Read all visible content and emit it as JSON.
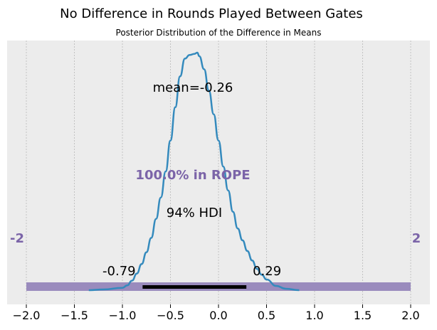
{
  "title": "No Difference in Rounds Played Between Gates",
  "subtitle": "Posterior Distribution of the Difference in Means",
  "colors": {
    "background": "#ffffff",
    "plot_background": "#ececec",
    "grid": "#b8b8b8",
    "density_line": "#348abd",
    "rope_band": "#9a8bbd",
    "rope_text": "#7b64a8",
    "hdi_bar": "#000000"
  },
  "chart_data": {
    "type": "line",
    "title": "No Difference in Rounds Played Between Gates",
    "subtitle": "Posterior Distribution of the Difference in Means",
    "xlabel": "",
    "ylabel": "",
    "xlim": [
      -2.2,
      2.2
    ],
    "x_ticks": [
      -2.0,
      -1.5,
      -1.0,
      -0.5,
      0.0,
      0.5,
      1.0,
      1.5,
      2.0
    ],
    "x_tick_labels": [
      "−2.0",
      "−1.5",
      "−1.0",
      "−0.5",
      "0.0",
      "0.5",
      "1.0",
      "1.5",
      "2.0"
    ],
    "grid": "vertical",
    "series": [
      {
        "x": [
          -1.35,
          -1.2,
          -1.0,
          -0.95,
          -0.9,
          -0.85,
          -0.8,
          -0.75,
          -0.7,
          -0.65,
          -0.6,
          -0.55,
          -0.5,
          -0.45,
          -0.4,
          -0.35,
          -0.3,
          -0.25,
          -0.22,
          -0.2,
          -0.15,
          -0.1,
          -0.05,
          0.0,
          0.05,
          0.1,
          0.15,
          0.2,
          0.25,
          0.3,
          0.35,
          0.4,
          0.45,
          0.5,
          0.6,
          0.7,
          0.84
        ],
        "y": [
          0.0,
          0.003,
          0.01,
          0.02,
          0.04,
          0.07,
          0.11,
          0.16,
          0.22,
          0.3,
          0.39,
          0.5,
          0.63,
          0.77,
          0.9,
          0.975,
          0.99,
          0.995,
          1.0,
          0.985,
          0.93,
          0.84,
          0.74,
          0.63,
          0.52,
          0.42,
          0.33,
          0.26,
          0.21,
          0.165,
          0.125,
          0.09,
          0.065,
          0.045,
          0.018,
          0.006,
          0.0
        ]
      }
    ],
    "rope": {
      "low": -2,
      "high": 2,
      "low_label": "-2",
      "high_label": "2",
      "text": "100.0% in ROPE"
    },
    "hdi": {
      "low": -0.79,
      "high": 0.29,
      "low_label": "-0.79",
      "high_label": "0.29",
      "text": "94% HDI"
    },
    "mean_text": "mean=-0.26"
  }
}
